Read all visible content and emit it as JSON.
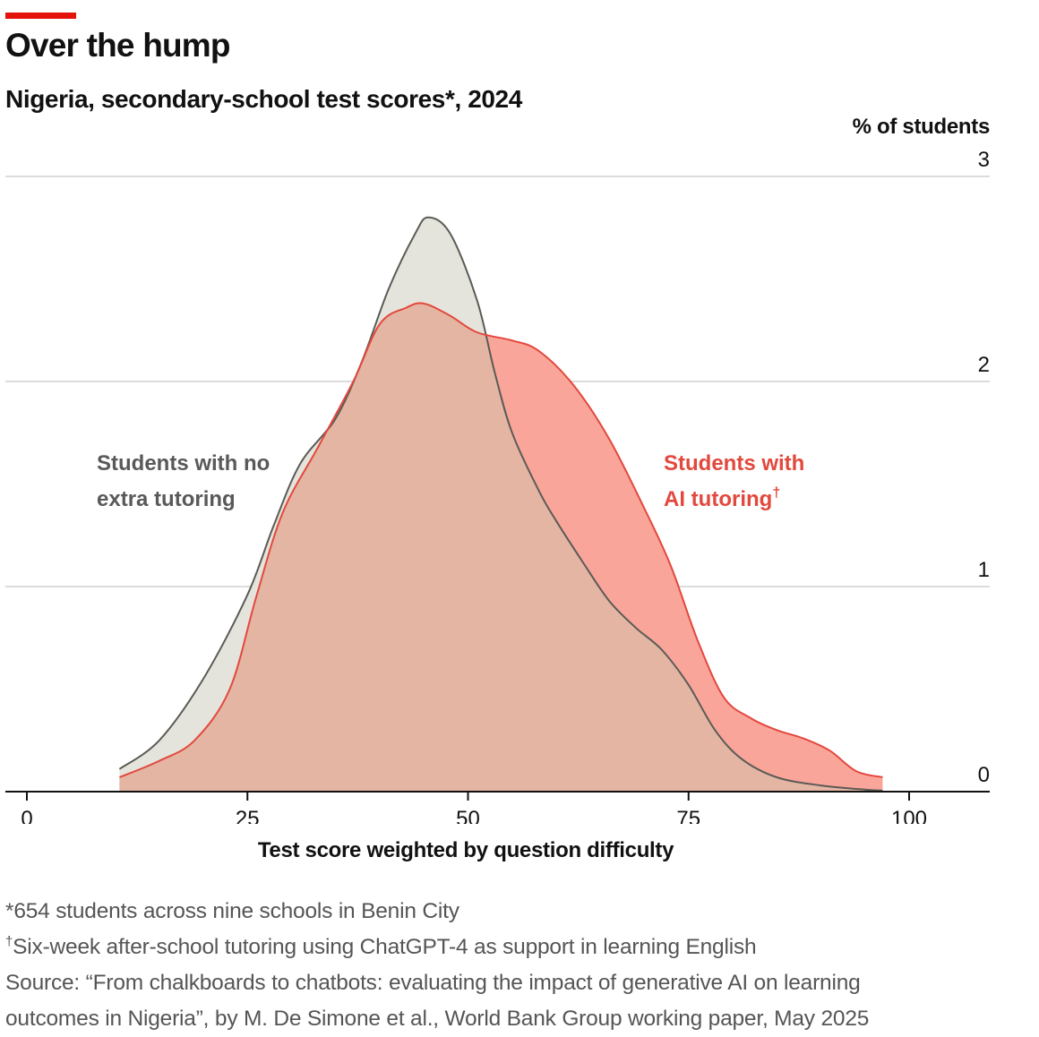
{
  "header": {
    "title": "Over the hump",
    "subtitle": "Nigeria, secondary-school test scores*, 2024"
  },
  "footer": {
    "note1": "*654 students across nine schools in Benin City",
    "note2_mark": "†",
    "note2": "Six-week after-school tutoring using ChatGPT-4 as support in learning English",
    "source_line1": "Source: “From chalkboards to chatbots: evaluating the impact of generative AI on learning",
    "source_line2": "outcomes in Nigeria”, by M. De Simone et al., World Bank Group working paper, May 2025"
  },
  "colors": {
    "accent": "#e3120b",
    "control_fill": "#e5e4dc",
    "control_line": "#5b5b56",
    "ai_fill": "#f9a59a",
    "ai_line": "#e3483d",
    "overlap_fill": "#e4b5a3",
    "grid": "#d0d0d0",
    "axis": "#111111"
  },
  "chart_data": {
    "type": "area",
    "title": "Over the hump",
    "subtitle": "Nigeria, secondary-school test scores*, 2024",
    "xlabel": "Test score weighted by question difficulty",
    "ylabel": "% of students",
    "xlim": [
      0,
      110
    ],
    "ylim": [
      0,
      3
    ],
    "xticks": [
      0,
      25,
      50,
      75,
      100
    ],
    "yticks": [
      0,
      1,
      2,
      3
    ],
    "grid": true,
    "series": [
      {
        "name": "Students with no extra tutoring",
        "label_lines": [
          "Students with no",
          "extra tutoring"
        ],
        "points": [
          [
            10.5,
            0.11
          ],
          [
            15,
            0.25
          ],
          [
            20,
            0.55
          ],
          [
            25,
            0.96
          ],
          [
            28,
            1.3
          ],
          [
            31,
            1.6
          ],
          [
            35,
            1.82
          ],
          [
            38,
            2.1
          ],
          [
            41,
            2.45
          ],
          [
            44,
            2.72
          ],
          [
            45.5,
            2.8
          ],
          [
            48,
            2.72
          ],
          [
            51,
            2.4
          ],
          [
            53,
            2.05
          ],
          [
            55,
            1.75
          ],
          [
            58,
            1.47
          ],
          [
            60,
            1.32
          ],
          [
            63,
            1.12
          ],
          [
            66,
            0.93
          ],
          [
            69,
            0.8
          ],
          [
            72,
            0.69
          ],
          [
            75,
            0.52
          ],
          [
            78,
            0.3
          ],
          [
            81,
            0.16
          ],
          [
            85,
            0.07
          ],
          [
            90,
            0.03
          ],
          [
            95,
            0.01
          ],
          [
            97,
            0.005
          ]
        ]
      },
      {
        "name": "Students with AI tutoring",
        "label_lines": [
          "Students with",
          "AI tutoring"
        ],
        "label_mark": "†",
        "points": [
          [
            10.5,
            0.07
          ],
          [
            15,
            0.15
          ],
          [
            19,
            0.25
          ],
          [
            23,
            0.5
          ],
          [
            26,
            0.95
          ],
          [
            29,
            1.36
          ],
          [
            33,
            1.68
          ],
          [
            37,
            2.0
          ],
          [
            40,
            2.28
          ],
          [
            43,
            2.36
          ],
          [
            45,
            2.38
          ],
          [
            48,
            2.32
          ],
          [
            51,
            2.24
          ],
          [
            55,
            2.2
          ],
          [
            58,
            2.15
          ],
          [
            62,
            1.98
          ],
          [
            66,
            1.72
          ],
          [
            70,
            1.38
          ],
          [
            73,
            1.1
          ],
          [
            76,
            0.74
          ],
          [
            79,
            0.46
          ],
          [
            82,
            0.36
          ],
          [
            85,
            0.3
          ],
          [
            88,
            0.26
          ],
          [
            91,
            0.2
          ],
          [
            94,
            0.1
          ],
          [
            97,
            0.07
          ]
        ]
      }
    ]
  }
}
